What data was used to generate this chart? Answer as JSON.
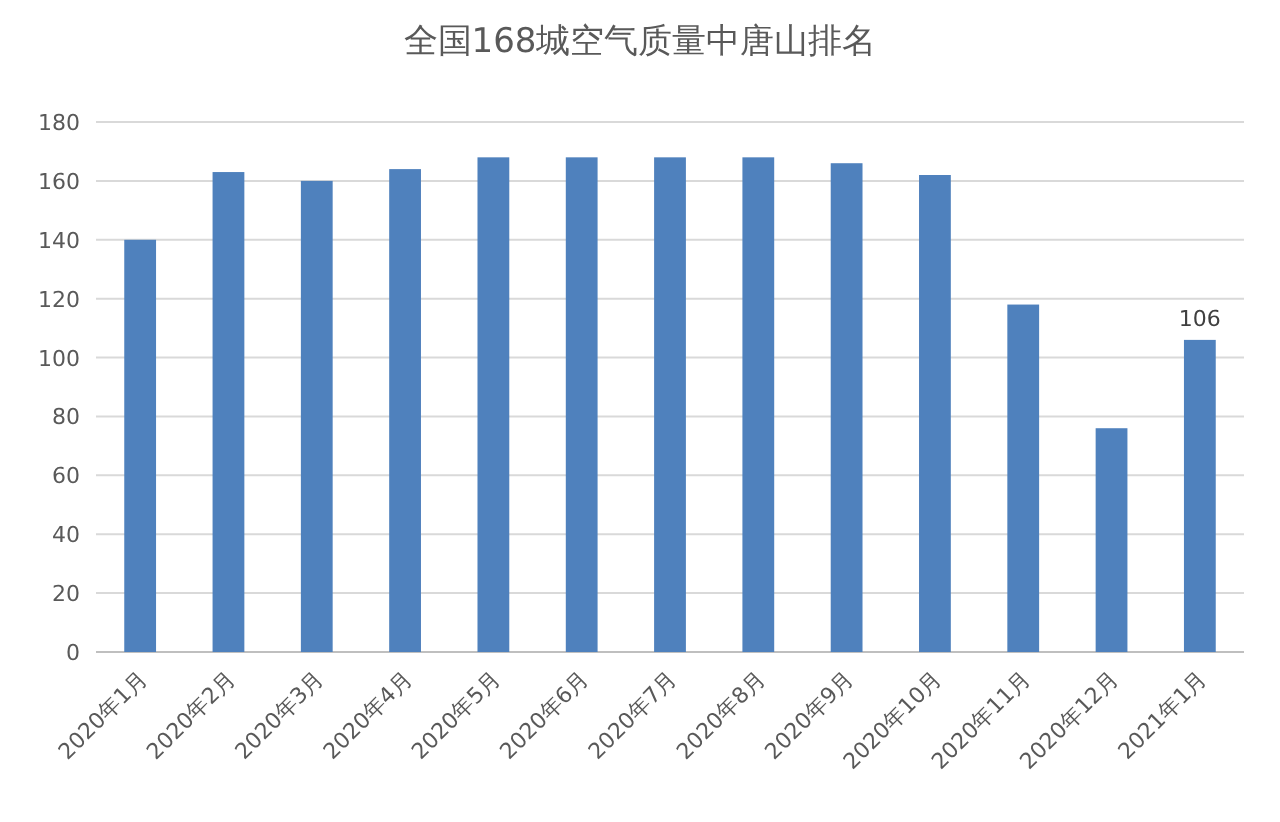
{
  "chart_data": {
    "type": "bar",
    "title": "全国168城空气质量中唐山排名",
    "categories": [
      "2020年1月",
      "2020年2月",
      "2020年3月",
      "2020年4月",
      "2020年5月",
      "2020年6月",
      "2020年7月",
      "2020年8月",
      "2020年9月",
      "2020年10月",
      "2020年11月",
      "2020年12月",
      "2021年1月"
    ],
    "values": [
      140,
      163,
      160,
      164,
      168,
      168,
      168,
      168,
      166,
      162,
      118,
      76,
      106
    ],
    "value_labels": [
      null,
      null,
      null,
      null,
      null,
      null,
      null,
      null,
      null,
      null,
      null,
      null,
      "106"
    ],
    "color": "#4f81bd",
    "ylim": [
      0,
      180
    ],
    "yticks": [
      0,
      20,
      40,
      60,
      80,
      100,
      120,
      140,
      160,
      180
    ],
    "grid": "y"
  }
}
